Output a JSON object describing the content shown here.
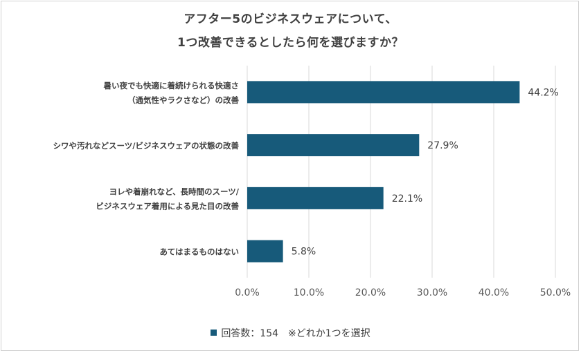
{
  "title_line1": "アフター5のビジネスウェアについて、",
  "title_line2": "1つ改善できるとしたら何を選びますか？",
  "chart_data": {
    "type": "bar",
    "orientation": "horizontal",
    "categories": [
      [
        "暑い夜でも快適に着続けられる快適さ",
        "（通気性やラクさなど）の改善"
      ],
      [
        "シワや汚れなどスーツ/ビジネスウェアの状態の改善"
      ],
      [
        "ヨレや着崩れなど、長時間のスーツ/",
        "ビジネスウェア着用による見た目の改善"
      ],
      [
        "あてはまるものはない"
      ]
    ],
    "values": [
      44.2,
      27.9,
      22.1,
      5.8
    ],
    "data_labels": [
      "44.2%",
      "27.9%",
      "22.1%",
      "5.8%"
    ],
    "xlim": [
      0,
      50
    ],
    "xticks": [
      "0.0%",
      "10.0%",
      "20.0%",
      "30.0%",
      "40.0%",
      "50.0%"
    ],
    "grid": true,
    "bar_color": "#175a7a",
    "grid_color": "#d9d9d9"
  },
  "legend_label": "回答数：154　※どれか1つを選択"
}
